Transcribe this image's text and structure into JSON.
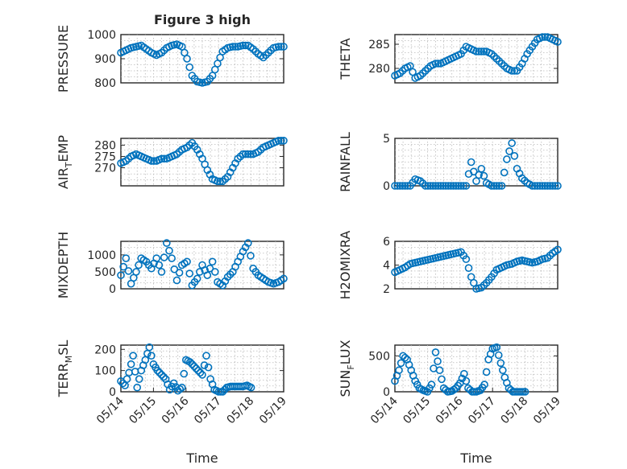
{
  "figure": {
    "title": "Figure 3 high",
    "marker_color": "#0072BD",
    "background": "#ffffff"
  },
  "chart_data": [
    {
      "type": "scatter",
      "ylabel": "PRESSURE",
      "ylabel_sub": "",
      "title": "Figure 3 high",
      "xlim": [
        "05/14",
        "05/18"
      ],
      "ylim": [
        800,
        1000
      ],
      "yticks": [
        800,
        900,
        1000
      ],
      "xticks": [],
      "grid": true,
      "series": [
        {
          "x": [
            "05/14 00:00",
            "05/14 03:00",
            "05/14 06:00",
            "05/14 09:00",
            "05/14 12:00",
            "05/14 15:00",
            "05/14 18:00",
            "05/14 21:00",
            "05/15 00:00",
            "05/15 03:00",
            "05/15 06:00",
            "05/15 09:00",
            "05/15 12:00",
            "05/15 15:00",
            "05/15 18:00",
            "05/15 21:00",
            "05/16 00:00",
            "05/16 03:00",
            "05/16 06:00",
            "05/16 09:00",
            "05/16 12:00",
            "05/16 15:00",
            "05/16 18:00",
            "05/16 21:00",
            "05/17 00:00",
            "05/17 03:00",
            "05/17 06:00",
            "05/17 09:00",
            "05/17 12:00",
            "05/17 15:00",
            "05/17 18:00",
            "05/17 21:00",
            "05/18 00:00"
          ],
          "y": [
            925,
            935,
            945,
            950,
            955,
            940,
            925,
            915,
            925,
            945,
            955,
            960,
            950,
            900,
            830,
            805,
            800,
            805,
            830,
            880,
            930,
            945,
            950,
            950,
            955,
            955,
            940,
            920,
            905,
            925,
            945,
            950,
            950
          ]
        }
      ]
    },
    {
      "type": "scatter",
      "ylabel": "THETA",
      "ylabel_sub": "",
      "xlim": [
        "05/14",
        "05/18"
      ],
      "ylim": [
        277,
        287
      ],
      "yticks": [
        280,
        285
      ],
      "xticks": [],
      "grid": true,
      "series": [
        {
          "x": [
            "05/14 00:00",
            "05/14 03:00",
            "05/14 06:00",
            "05/14 09:00",
            "05/14 12:00",
            "05/14 15:00",
            "05/14 18:00",
            "05/14 21:00",
            "05/15 00:00",
            "05/15 03:00",
            "05/15 06:00",
            "05/15 09:00",
            "05/15 12:00",
            "05/15 15:00",
            "05/15 18:00",
            "05/15 21:00",
            "05/16 00:00",
            "05/16 03:00",
            "05/16 06:00",
            "05/16 09:00",
            "05/16 12:00",
            "05/16 15:00",
            "05/16 18:00",
            "05/16 21:00",
            "05/17 00:00",
            "05/17 03:00",
            "05/17 06:00",
            "05/17 09:00",
            "05/17 12:00",
            "05/17 15:00",
            "05/17 18:00",
            "05/17 21:00",
            "05/18 00:00"
          ],
          "y": [
            278.5,
            279,
            280,
            280.5,
            278,
            278.5,
            279.5,
            280.5,
            281,
            281,
            281.5,
            282,
            282.5,
            283,
            284.5,
            284,
            283.5,
            283.5,
            283.5,
            283,
            282,
            281,
            280,
            279.5,
            279.5,
            281,
            283,
            284.5,
            286,
            286.5,
            286.5,
            286,
            285.5
          ]
        }
      ]
    },
    {
      "type": "scatter",
      "ylabel": "AIR",
      "ylabel_sub": "T",
      "ylabel_suffix": "EMP",
      "xlim": [
        "05/14",
        "05/18"
      ],
      "ylim": [
        262,
        283
      ],
      "yticks": [
        270,
        275,
        280
      ],
      "xticks": [],
      "grid": true,
      "series": [
        {
          "x": [
            "05/14 00:00",
            "05/14 03:00",
            "05/14 06:00",
            "05/14 09:00",
            "05/14 12:00",
            "05/14 15:00",
            "05/14 18:00",
            "05/14 21:00",
            "05/15 00:00",
            "05/15 03:00",
            "05/15 06:00",
            "05/15 09:00",
            "05/15 12:00",
            "05/15 15:00",
            "05/15 18:00",
            "05/15 21:00",
            "05/16 00:00",
            "05/16 03:00",
            "05/16 06:00",
            "05/16 09:00",
            "05/16 12:00",
            "05/16 15:00",
            "05/16 18:00",
            "05/16 21:00",
            "05/17 00:00",
            "05/17 03:00",
            "05/17 06:00",
            "05/17 09:00",
            "05/17 12:00",
            "05/17 15:00",
            "05/17 18:00",
            "05/17 21:00",
            "05/18 00:00"
          ],
          "y": [
            272,
            273,
            275,
            276,
            275,
            274,
            273,
            273,
            274,
            274,
            275,
            276,
            278,
            279,
            281,
            278,
            274,
            269,
            265,
            264,
            264,
            266,
            270,
            274,
            276,
            276,
            276,
            277,
            279,
            280,
            281,
            282,
            282
          ]
        }
      ]
    },
    {
      "type": "scatter",
      "ylabel": "RAINFALL",
      "ylabel_sub": "",
      "xlim": [
        "05/14",
        "05/18"
      ],
      "ylim": [
        0,
        5
      ],
      "yticks": [
        0,
        5
      ],
      "xticks": [],
      "grid": true,
      "series": [
        {
          "x": [
            "05/14 00:00",
            "05/14 03:00",
            "05/14 06:00",
            "05/14 09:00",
            "05/14 12:00",
            "05/14 15:00",
            "05/14 18:00",
            "05/14 21:00",
            "05/15 00:00",
            "05/15 03:00",
            "05/15 06:00",
            "05/15 09:00",
            "05/15 12:00",
            "05/15 15:00",
            "05/15 18:00",
            "05/15 21:00",
            "05/16 00:00",
            "05/16 03:00",
            "05/16 06:00",
            "05/16 09:00",
            "05/16 12:00",
            "05/16 15:00",
            "05/16 18:00",
            "05/16 21:00",
            "05/17 00:00",
            "05/17 03:00",
            "05/17 06:00",
            "05/17 09:00",
            "05/17 12:00",
            "05/17 15:00",
            "05/17 18:00",
            "05/17 21:00",
            "05/18 00:00"
          ],
          "y": [
            0,
            0,
            0,
            0,
            0.7,
            0.5,
            0,
            0,
            0,
            0,
            0,
            0,
            0,
            0,
            0,
            2.5,
            0.5,
            1.8,
            0.3,
            0,
            0,
            0,
            2.8,
            4.5,
            1.8,
            0.8,
            0.3,
            0,
            0,
            0,
            0,
            0,
            0
          ]
        }
      ]
    },
    {
      "type": "scatter",
      "ylabel": "MIXDEPTH",
      "ylabel_sub": "",
      "xlim": [
        "05/14",
        "05/18"
      ],
      "ylim": [
        0,
        1400
      ],
      "yticks": [
        0,
        500,
        1000
      ],
      "xticks": [],
      "grid": true,
      "series": [
        {
          "x": [
            "05/14 00:00",
            "05/14 03:00",
            "05/14 06:00",
            "05/14 09:00",
            "05/14 12:00",
            "05/14 15:00",
            "05/14 18:00",
            "05/14 21:00",
            "05/15 00:00",
            "05/15 03:00",
            "05/15 06:00",
            "05/15 09:00",
            "05/15 12:00",
            "05/15 15:00",
            "05/15 18:00",
            "05/15 21:00",
            "05/16 00:00",
            "05/16 03:00",
            "05/16 06:00",
            "05/16 09:00",
            "05/16 12:00",
            "05/16 15:00",
            "05/16 18:00",
            "05/16 21:00",
            "05/17 00:00",
            "05/17 03:00",
            "05/17 06:00",
            "05/17 09:00",
            "05/17 12:00",
            "05/17 15:00",
            "05/17 18:00",
            "05/17 21:00",
            "05/18 00:00"
          ],
          "y": [
            400,
            900,
            150,
            500,
            900,
            800,
            600,
            900,
            500,
            1350,
            900,
            250,
            700,
            800,
            100,
            300,
            700,
            400,
            800,
            200,
            100,
            350,
            500,
            800,
            1100,
            1350,
            600,
            400,
            300,
            200,
            150,
            200,
            300
          ]
        }
      ]
    },
    {
      "type": "scatter",
      "ylabel": "H2OMIXRA",
      "ylabel_sub": "",
      "xlim": [
        "05/14",
        "05/18"
      ],
      "ylim": [
        2,
        6
      ],
      "yticks": [
        2,
        4,
        6
      ],
      "xticks": [],
      "grid": true,
      "series": [
        {
          "x": [
            "05/14 00:00",
            "05/14 03:00",
            "05/14 06:00",
            "05/14 09:00",
            "05/14 12:00",
            "05/14 15:00",
            "05/14 18:00",
            "05/14 21:00",
            "05/15 00:00",
            "05/15 03:00",
            "05/15 06:00",
            "05/15 09:00",
            "05/15 12:00",
            "05/15 15:00",
            "05/15 18:00",
            "05/15 21:00",
            "05/16 00:00",
            "05/16 03:00",
            "05/16 06:00",
            "05/16 09:00",
            "05/16 12:00",
            "05/16 15:00",
            "05/16 18:00",
            "05/16 21:00",
            "05/17 00:00",
            "05/17 03:00",
            "05/17 06:00",
            "05/17 09:00",
            "05/17 12:00",
            "05/17 15:00",
            "05/17 18:00",
            "05/17 21:00",
            "05/18 00:00"
          ],
          "y": [
            3.4,
            3.6,
            3.8,
            4.1,
            4.2,
            4.3,
            4.4,
            4.5,
            4.6,
            4.7,
            4.8,
            4.9,
            5.0,
            5.1,
            4.5,
            3.0,
            2.0,
            2.1,
            2.5,
            3.0,
            3.6,
            3.8,
            4.0,
            4.1,
            4.3,
            4.4,
            4.3,
            4.2,
            4.3,
            4.5,
            4.6,
            5.0,
            5.3
          ]
        }
      ]
    },
    {
      "type": "scatter",
      "ylabel": "TERR",
      "ylabel_sub": "M",
      "ylabel_suffix": "SL",
      "xlim": [
        "05/14",
        "05/19"
      ],
      "ylim": [
        0,
        220
      ],
      "yticks": [
        0,
        100,
        200
      ],
      "xticks": [
        "05/14",
        "05/15",
        "05/16",
        "05/17",
        "05/18",
        "05/19"
      ],
      "xlabel": "Time",
      "grid": true,
      "series": [
        {
          "x": [
            "05/14 00:00",
            "05/14 03:00",
            "05/14 06:00",
            "05/14 09:00",
            "05/14 12:00",
            "05/14 15:00",
            "05/14 18:00",
            "05/14 21:00",
            "05/15 00:00",
            "05/15 03:00",
            "05/15 06:00",
            "05/15 09:00",
            "05/15 12:00",
            "05/15 15:00",
            "05/15 18:00",
            "05/15 21:00",
            "05/16 00:00",
            "05/16 03:00",
            "05/16 06:00",
            "05/16 09:00",
            "05/16 12:00",
            "05/16 15:00",
            "05/16 18:00",
            "05/16 21:00",
            "05/17 00:00",
            "05/17 03:00",
            "05/17 06:00",
            "05/17 09:00",
            "05/17 12:00",
            "05/17 15:00",
            "05/17 18:00",
            "05/17 21:00",
            "05/18 00:00"
          ],
          "y": [
            50,
            30,
            90,
            170,
            20,
            100,
            150,
            210,
            130,
            100,
            80,
            60,
            10,
            40,
            5,
            20,
            150,
            140,
            120,
            100,
            80,
            170,
            60,
            10,
            0,
            0,
            20,
            25,
            25,
            25,
            25,
            30,
            20
          ]
        }
      ]
    },
    {
      "type": "scatter",
      "ylabel": "SUN",
      "ylabel_sub": "F",
      "ylabel_suffix": "LUX",
      "xlim": [
        "05/14",
        "05/19"
      ],
      "ylim": [
        0,
        650
      ],
      "yticks": [
        0,
        500
      ],
      "xticks": [
        "05/14",
        "05/15",
        "05/16",
        "05/17",
        "05/18",
        "05/19"
      ],
      "xlabel": "Time",
      "grid": true,
      "series": [
        {
          "x": [
            "05/14 00:00",
            "05/14 03:00",
            "05/14 06:00",
            "05/14 09:00",
            "05/14 12:00",
            "05/14 15:00",
            "05/14 18:00",
            "05/14 21:00",
            "05/15 00:00",
            "05/15 03:00",
            "05/15 06:00",
            "05/15 09:00",
            "05/15 12:00",
            "05/15 15:00",
            "05/15 18:00",
            "05/15 21:00",
            "05/16 00:00",
            "05/16 03:00",
            "05/16 06:00",
            "05/16 09:00",
            "05/16 12:00",
            "05/16 15:00",
            "05/16 18:00",
            "05/16 21:00",
            "05/17 00:00",
            "05/17 03:00",
            "05/17 06:00",
            "05/17 09:00",
            "05/17 12:00",
            "05/17 15:00",
            "05/17 18:00",
            "05/17 21:00",
            "05/18 00:00"
          ],
          "y": [
            150,
            300,
            500,
            450,
            300,
            150,
            50,
            20,
            0,
            100,
            550,
            300,
            50,
            0,
            10,
            50,
            120,
            250,
            50,
            0,
            0,
            20,
            100,
            450,
            600,
            620,
            400,
            200,
            50,
            0,
            0,
            0,
            0
          ]
        }
      ]
    }
  ]
}
